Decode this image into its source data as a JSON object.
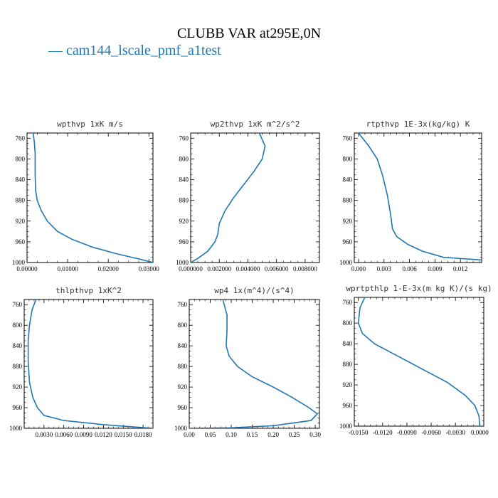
{
  "figure": {
    "title": "CLUBB VAR at295E,0N",
    "legend": [
      {
        "marker": "—",
        "label": "cam144_lscale_pmf_a1test",
        "color": "#1f77b4"
      }
    ]
  },
  "chart_data": [
    {
      "type": "line",
      "title": "wpthvp  1xK m/s",
      "xlim": [
        0,
        0.031
      ],
      "ylim": [
        1000,
        750
      ],
      "xticks": [
        0,
        0.01,
        0.02,
        0.03
      ],
      "xtick_labels": [
        "0.00000",
        "0.01000",
        "0.02000",
        "0.03000"
      ],
      "yticks": [
        760,
        800,
        840,
        880,
        920,
        960,
        1000
      ],
      "ytick_labels": [
        "760",
        "800",
        "840",
        "880",
        "920",
        "960",
        "1000"
      ],
      "series": [
        {
          "color": "#1f77b4",
          "points": [
            [
              0.0015,
              750
            ],
            [
              0.0018,
              768
            ],
            [
              0.002,
              790
            ],
            [
              0.002,
              830
            ],
            [
              0.0021,
              860
            ],
            [
              0.0025,
              880
            ],
            [
              0.0035,
              900
            ],
            [
              0.005,
              920
            ],
            [
              0.0075,
              940
            ],
            [
              0.011,
              955
            ],
            [
              0.016,
              970
            ],
            [
              0.022,
              983
            ],
            [
              0.028,
              994
            ],
            [
              0.031,
              1000
            ]
          ]
        }
      ]
    },
    {
      "type": "line",
      "title": "wp2thvp  1xK m^2/s^2",
      "xlim": [
        0,
        0.009
      ],
      "ylim": [
        1000,
        750
      ],
      "xticks": [
        0,
        0.002,
        0.004,
        0.006,
        0.008
      ],
      "xtick_labels": [
        "0.000000",
        "0.002000",
        "0.004000",
        "0.006000",
        "0.008000"
      ],
      "yticks": [
        760,
        800,
        840,
        880,
        920,
        960,
        1000
      ],
      "ytick_labels": [
        "760",
        "800",
        "840",
        "880",
        "920",
        "960",
        "1000"
      ],
      "series": [
        {
          "color": "#1f77b4",
          "points": [
            [
              0.0048,
              750
            ],
            [
              0.0052,
              775
            ],
            [
              0.005,
              800
            ],
            [
              0.0044,
              825
            ],
            [
              0.0037,
              850
            ],
            [
              0.003,
              875
            ],
            [
              0.0024,
              900
            ],
            [
              0.002,
              925
            ],
            [
              0.0019,
              945
            ],
            [
              0.0017,
              960
            ],
            [
              0.0012,
              978
            ],
            [
              0.0005,
              992
            ],
            [
              0.0,
              1000
            ]
          ]
        }
      ]
    },
    {
      "type": "line",
      "title": "rtpthvp  1E-3x(kg/kg) K",
      "xlim": [
        -0.0005,
        0.0145
      ],
      "ylim": [
        1000,
        750
      ],
      "xticks": [
        0,
        0.003,
        0.006,
        0.009,
        0.012
      ],
      "xtick_labels": [
        "0.000",
        "0.003",
        "0.006",
        "0.009",
        "0.012"
      ],
      "yticks": [
        760,
        800,
        840,
        880,
        920,
        960,
        1000
      ],
      "ytick_labels": [
        "760",
        "800",
        "840",
        "880",
        "920",
        "960",
        "1000"
      ],
      "series": [
        {
          "color": "#1f77b4",
          "points": [
            [
              0.0,
              750
            ],
            [
              0.0012,
              775
            ],
            [
              0.0022,
              800
            ],
            [
              0.0028,
              830
            ],
            [
              0.0034,
              870
            ],
            [
              0.0038,
              910
            ],
            [
              0.004,
              935
            ],
            [
              0.0045,
              950
            ],
            [
              0.0058,
              965
            ],
            [
              0.0075,
              978
            ],
            [
              0.01,
              990
            ],
            [
              0.0145,
              995
            ]
          ]
        }
      ]
    },
    {
      "type": "line",
      "title": "thlpthvp  1xK^2",
      "xlim": [
        0,
        0.0195
      ],
      "ylim": [
        1000,
        750
      ],
      "xticks": [
        0.003,
        0.006,
        0.009,
        0.012,
        0.015,
        0.018
      ],
      "xtick_labels": [
        "0.0030",
        "0.0060",
        "0.0090",
        "0.0120",
        "0.0150",
        "0.0180"
      ],
      "yticks": [
        760,
        800,
        840,
        880,
        920,
        960,
        1000
      ],
      "ytick_labels": [
        "760",
        "800",
        "840",
        "880",
        "920",
        "960",
        "1000"
      ],
      "series": [
        {
          "color": "#1f77b4",
          "points": [
            [
              0.0018,
              750
            ],
            [
              0.0012,
              770
            ],
            [
              0.0008,
              800
            ],
            [
              0.0006,
              830
            ],
            [
              0.0006,
              870
            ],
            [
              0.0008,
              910
            ],
            [
              0.0013,
              940
            ],
            [
              0.002,
              960
            ],
            [
              0.003,
              975
            ],
            [
              0.006,
              985
            ],
            [
              0.012,
              993
            ],
            [
              0.0195,
              1000
            ]
          ]
        }
      ]
    },
    {
      "type": "line",
      "title": "wp4  1x(m^4)/(s^4)",
      "xlim": [
        0,
        0.31
      ],
      "ylim": [
        1000,
        750
      ],
      "xticks": [
        0,
        0.05,
        0.1,
        0.15,
        0.2,
        0.25,
        0.3
      ],
      "xtick_labels": [
        "0.00",
        "0.05",
        "0.10",
        "0.15",
        "0.20",
        "0.25",
        "0.30"
      ],
      "yticks": [
        760,
        800,
        840,
        880,
        920,
        960,
        1000
      ],
      "ytick_labels": [
        "760",
        "800",
        "840",
        "880",
        "920",
        "960",
        "1000"
      ],
      "series": [
        {
          "color": "#1f77b4",
          "points": [
            [
              0.08,
              750
            ],
            [
              0.09,
              780
            ],
            [
              0.09,
              810
            ],
            [
              0.088,
              840
            ],
            [
              0.095,
              860
            ],
            [
              0.115,
              880
            ],
            [
              0.15,
              900
            ],
            [
              0.2,
              920
            ],
            [
              0.245,
              940
            ],
            [
              0.285,
              960
            ],
            [
              0.305,
              972
            ],
            [
              0.29,
              985
            ],
            [
              0.2,
              995
            ],
            [
              0.1,
              999
            ],
            [
              0.0,
              1000
            ]
          ]
        }
      ]
    },
    {
      "type": "line",
      "title": "wprtpthlp  1-E-3x(m kg K)/(s kg)",
      "xlim": [
        -0.0155,
        0.0005
      ],
      "ylim": [
        1000,
        750
      ],
      "xticks": [
        -0.015,
        -0.012,
        -0.009,
        -0.006,
        -0.003,
        0
      ],
      "xtick_labels": [
        "-0.0150",
        "-0.0120",
        "-0.0090",
        "-0.0060",
        "-0.0030",
        "0.0000"
      ],
      "yticks": [
        760,
        800,
        840,
        880,
        920,
        960,
        1000
      ],
      "ytick_labels": [
        "760",
        "800",
        "840",
        "880",
        "920",
        "960",
        "1000"
      ],
      "series": [
        {
          "color": "#1f77b4",
          "points": [
            [
              -0.0142,
              750
            ],
            [
              -0.0148,
              770
            ],
            [
              -0.015,
              800
            ],
            [
              -0.0145,
              820
            ],
            [
              -0.013,
              840
            ],
            [
              -0.01,
              865
            ],
            [
              -0.007,
              890
            ],
            [
              -0.004,
              915
            ],
            [
              -0.0018,
              940
            ],
            [
              -0.0006,
              960
            ],
            [
              -0.0001,
              980
            ],
            [
              0.0,
              1000
            ]
          ]
        }
      ]
    }
  ]
}
